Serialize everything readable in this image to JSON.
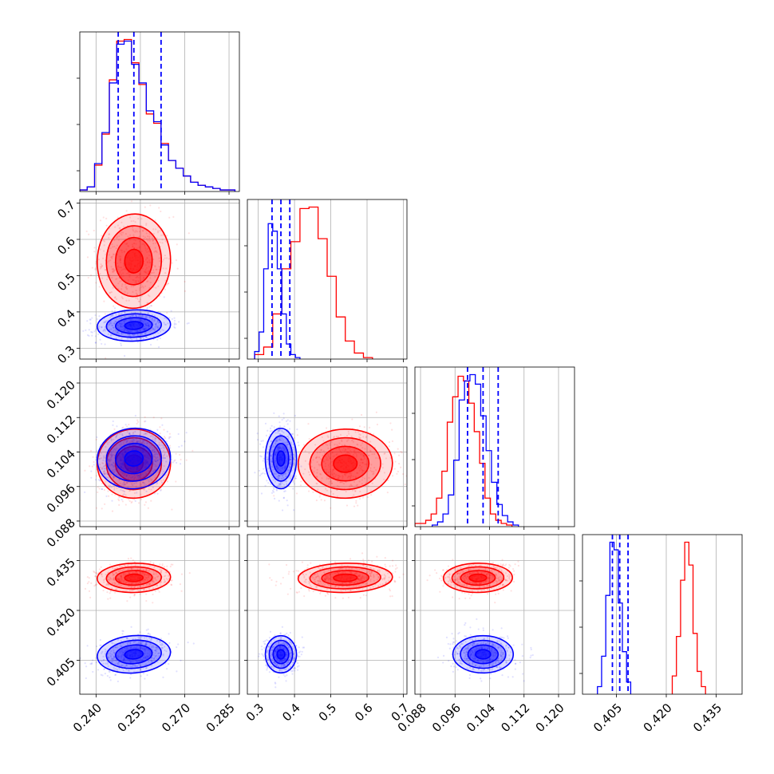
{
  "chart_data": {
    "type": "corner",
    "parameters": [
      {
        "ticks": [
          "0.240",
          "0.255",
          "0.270",
          "0.285"
        ],
        "tick_values": [
          0.24,
          0.255,
          0.27,
          0.285
        ],
        "range": [
          0.2345,
          0.2885
        ]
      },
      {
        "ticks": [
          "0.3",
          "0.4",
          "0.5",
          "0.6",
          "0.7"
        ],
        "tick_values": [
          0.3,
          0.4,
          0.5,
          0.6,
          0.7
        ],
        "range": [
          0.27,
          0.71
        ]
      },
      {
        "ticks": [
          "0.088",
          "0.096",
          "0.104",
          "0.112",
          "0.120"
        ],
        "tick_values": [
          0.088,
          0.096,
          0.104,
          0.112,
          0.12
        ],
        "range": [
          0.0867,
          0.1237
        ]
      },
      {
        "ticks": [
          "0.405",
          "0.420",
          "0.435"
        ],
        "tick_values": [
          0.405,
          0.42,
          0.435
        ],
        "range": [
          0.3948,
          0.4428
        ]
      }
    ],
    "series": [
      {
        "color": "#0000ff",
        "means": [
          0.2528,
          0.3625,
          0.1025,
          0.4068
        ],
        "stds": [
          0.0062,
          0.0215,
          0.0035,
          0.0028
        ],
        "correlations": [
          [
            0,
            1,
            0.15
          ],
          [
            0,
            2,
            0.2
          ],
          [
            0,
            3,
            0.25
          ]
        ],
        "quantiles": [
          [
            0.2475,
            0.2528,
            0.262
          ],
          [
            0.338,
            0.3625,
            0.387
          ],
          [
            0.0989,
            0.1025,
            0.106
          ],
          [
            0.4038,
            0.406,
            0.4085
          ]
        ],
        "hist": [
          {
            "edges_start": 0.2345,
            "bin_width": 0.0025,
            "counts": [
              1,
              3,
              18,
              38,
              70,
              95,
              97,
              82,
              70,
              52,
              45,
              30,
              20,
              15,
              10,
              6,
              4,
              3,
              2,
              1,
              1
            ]
          },
          {
            "edges_start": 0.29,
            "bin_width": 0.0125,
            "counts": [
              5,
              18,
              60,
              90,
              85,
              60,
              30,
              10,
              3,
              1
            ]
          },
          {
            "edges_start": 0.0907,
            "bin_width": 0.00125,
            "counts": [
              1,
              3,
              8,
              20,
              42,
              80,
              92,
              96,
              90,
              70,
              48,
              28,
              14,
              7,
              3,
              1
            ]
          },
          {
            "edges_start": 0.3993,
            "bin_width": 0.00125,
            "counts": [
              5,
              25,
              65,
              100,
              95,
              60,
              28,
              8
            ]
          }
        ]
      },
      {
        "color": "#ff0000",
        "means": [
          0.2528,
          0.54,
          0.1013,
          0.4298
        ],
        "stds": [
          0.0062,
          0.065,
          0.004,
          0.0022
        ],
        "correlations": [
          [
            0,
            1,
            -0.05
          ],
          [
            0,
            2,
            0.1
          ],
          [
            0,
            3,
            0.1
          ],
          [
            1,
            2,
            0.05
          ],
          [
            1,
            3,
            0.1
          ],
          [
            2,
            3,
            0.05
          ]
        ],
        "quantiles": [],
        "hist": [
          {
            "edges_start": 0.2345,
            "bin_width": 0.0025,
            "counts": [
              1,
              3,
              17,
              37,
              72,
              97,
              98,
              83,
              69,
              50,
              44,
              31,
              20,
              15,
              10,
              6,
              4,
              3,
              2,
              1,
              1
            ]
          },
          {
            "edges_start": 0.29,
            "bin_width": 0.025,
            "counts": [
              3,
              8,
              30,
              60,
              78,
              100,
              101,
              80,
              55,
              28,
              12,
              4,
              1
            ]
          },
          {
            "edges_start": 0.0867,
            "bin_width": 0.00125,
            "counts": [
              2,
              2,
              4,
              8,
              18,
              35,
              66,
              82,
              95,
              92,
              78,
              60,
              40,
              18,
              8,
              4,
              2,
              1
            ]
          },
          {
            "edges_start": 0.4218,
            "bin_width": 0.00125,
            "counts": [
              12,
              38,
              75,
              100,
              85,
              40,
              15,
              5
            ]
          }
        ]
      }
    ]
  }
}
